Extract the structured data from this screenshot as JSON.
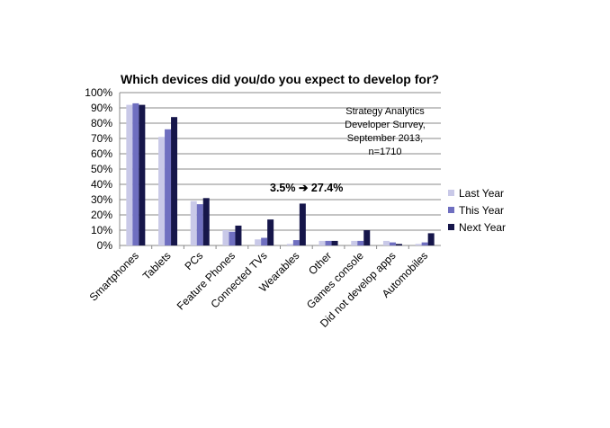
{
  "chart_data": {
    "type": "bar",
    "title": "Which devices did you/do you expect to develop for?",
    "categories": [
      "Smartphones",
      "Tablets",
      "PCs",
      "Feature Phones",
      "Connected TVs",
      "Wearables",
      "Other",
      "Games console",
      "Did not develop apps",
      "Automobiles"
    ],
    "series": [
      {
        "name": "Last Year",
        "color": "#c9c9e8",
        "values": [
          92,
          71,
          29,
          10,
          4,
          1,
          3,
          3,
          3,
          1
        ]
      },
      {
        "name": "This Year",
        "color": "#6f6fc0",
        "values": [
          93,
          76,
          27,
          9,
          5,
          3.5,
          3,
          3,
          2,
          2
        ]
      },
      {
        "name": "Next Year",
        "color": "#16164a",
        "values": [
          92,
          84,
          31,
          13,
          17,
          27.4,
          3,
          10,
          1,
          8
        ]
      }
    ],
    "ylim": [
      0,
      100
    ],
    "yticks": [
      "0%",
      "10%",
      "20%",
      "30%",
      "40%",
      "50%",
      "60%",
      "70%",
      "80%",
      "90%",
      "100%"
    ],
    "grid": true,
    "legend_position": "right",
    "source_note": [
      "Strategy Analytics",
      "Developer Survey,",
      "September 2013,",
      "n=1710"
    ],
    "annotation": "3.5% ➔ 27.4%"
  }
}
